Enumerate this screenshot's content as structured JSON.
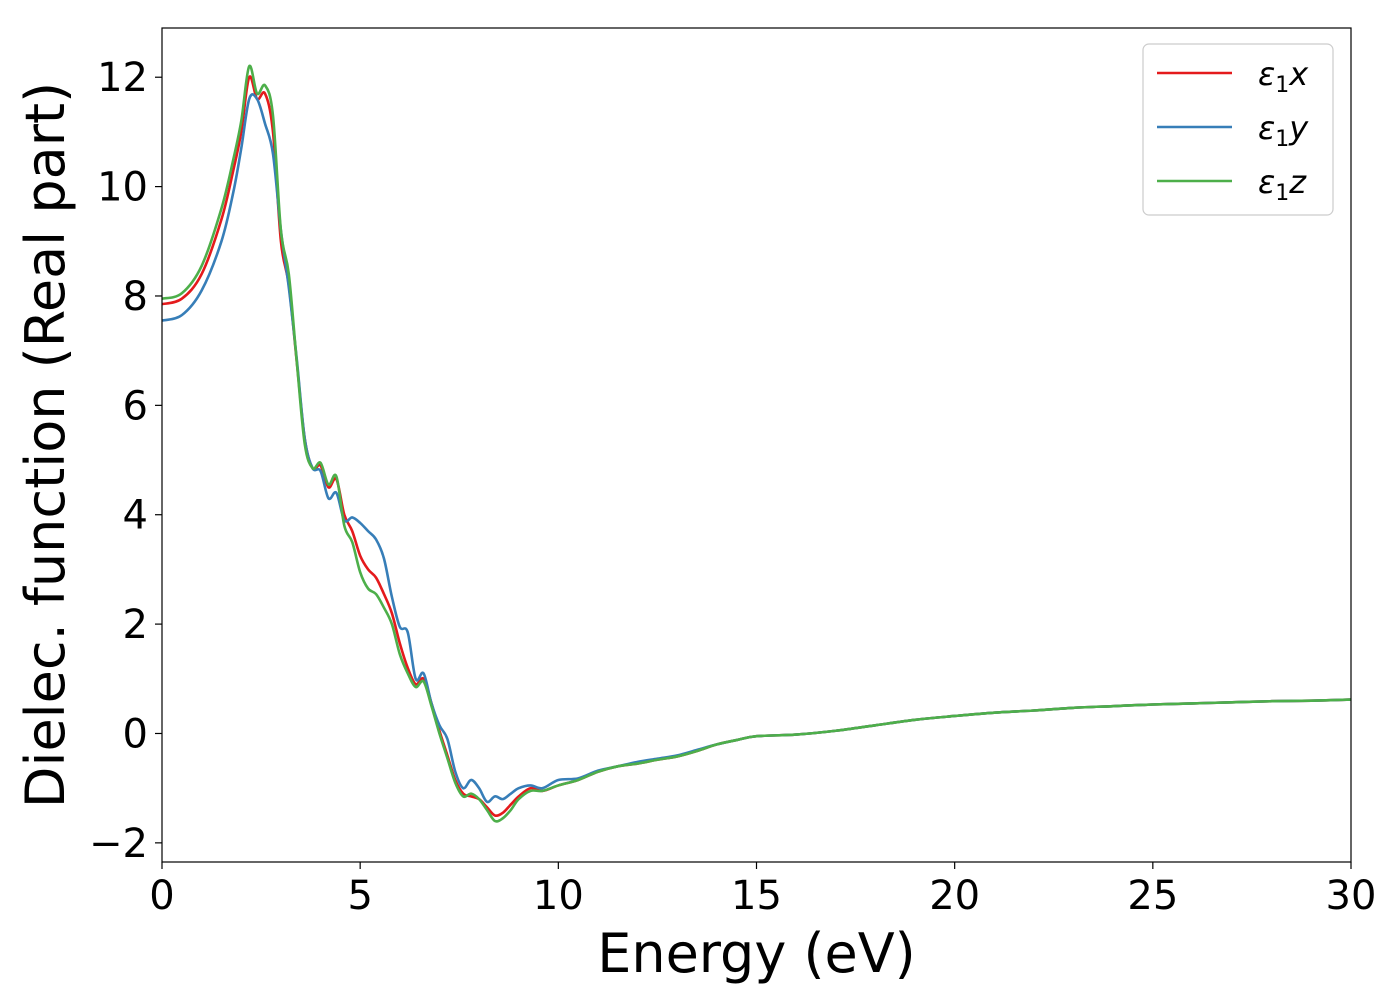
{
  "chart_data": {
    "type": "line",
    "title": "",
    "xlabel": "Energy (eV)",
    "ylabel": "Dielec. function (Real part)",
    "xlim": [
      0,
      30
    ],
    "ylim": [
      -2.35,
      12.9
    ],
    "xticks": [
      0,
      5,
      10,
      15,
      20,
      25,
      30
    ],
    "xtick_labels": [
      "0",
      "5",
      "10",
      "15",
      "20",
      "25",
      "30"
    ],
    "yticks": [
      -2,
      0,
      2,
      4,
      6,
      8,
      10,
      12
    ],
    "ytick_labels": [
      "−2",
      "0",
      "2",
      "4",
      "6",
      "8",
      "10",
      "12"
    ],
    "grid": false,
    "legend_position": "top-right",
    "series": [
      {
        "name": "ε1x",
        "legend": {
          "symbol": "ε",
          "sub": "1",
          "axis": "x"
        },
        "color": "#e41a1c",
        "x": [
          0,
          0.5,
          1.0,
          1.5,
          1.8,
          2.0,
          2.2,
          2.4,
          2.6,
          2.8,
          3.0,
          3.2,
          3.4,
          3.6,
          3.8,
          4.0,
          4.2,
          4.4,
          4.6,
          4.8,
          5.0,
          5.2,
          5.4,
          5.6,
          5.8,
          6.0,
          6.2,
          6.4,
          6.6,
          6.8,
          7.0,
          7.2,
          7.4,
          7.6,
          7.8,
          8.0,
          8.2,
          8.4,
          8.6,
          8.8,
          9.0,
          9.3,
          9.6,
          10.0,
          10.5,
          11.0,
          11.5,
          12.0,
          12.5,
          13.0,
          13.5,
          14.0,
          14.5,
          15.0,
          16.0,
          17.0,
          18.0,
          19.0,
          20.0,
          21.0,
          22.0,
          23.0,
          24.0,
          25.0,
          26.0,
          27.0,
          28.0,
          29.0,
          30.0
        ],
        "values": [
          7.85,
          7.95,
          8.4,
          9.4,
          10.3,
          11.0,
          12.0,
          11.6,
          11.7,
          11.0,
          9.0,
          8.2,
          6.8,
          5.4,
          4.85,
          4.9,
          4.5,
          4.65,
          4.0,
          3.7,
          3.25,
          3.0,
          2.85,
          2.55,
          2.2,
          1.65,
          1.2,
          0.9,
          1.0,
          0.55,
          0.05,
          -0.4,
          -0.85,
          -1.1,
          -1.15,
          -1.2,
          -1.35,
          -1.5,
          -1.45,
          -1.3,
          -1.15,
          -1.0,
          -1.05,
          -0.95,
          -0.85,
          -0.7,
          -0.6,
          -0.55,
          -0.48,
          -0.42,
          -0.32,
          -0.2,
          -0.12,
          -0.05,
          -0.02,
          0.05,
          0.15,
          0.25,
          0.32,
          0.38,
          0.42,
          0.47,
          0.5,
          0.53,
          0.55,
          0.57,
          0.59,
          0.6,
          0.62
        ]
      },
      {
        "name": "ε1y",
        "legend": {
          "symbol": "ε",
          "sub": "1",
          "axis": "y"
        },
        "color": "#377eb8",
        "x": [
          0,
          0.5,
          1.0,
          1.5,
          1.8,
          2.0,
          2.2,
          2.4,
          2.6,
          2.8,
          3.0,
          3.2,
          3.4,
          3.6,
          3.8,
          4.0,
          4.2,
          4.4,
          4.6,
          4.8,
          5.0,
          5.2,
          5.4,
          5.6,
          5.8,
          6.0,
          6.2,
          6.4,
          6.6,
          6.8,
          7.0,
          7.2,
          7.4,
          7.6,
          7.8,
          8.0,
          8.2,
          8.4,
          8.6,
          8.8,
          9.0,
          9.3,
          9.6,
          10.0,
          10.5,
          11.0,
          11.5,
          12.0,
          12.5,
          13.0,
          13.5,
          14.0,
          14.5,
          15.0,
          16.0,
          17.0,
          18.0,
          19.0,
          20.0,
          21.0,
          22.0,
          23.0,
          24.0,
          25.0,
          26.0,
          27.0,
          28.0,
          29.0,
          30.0
        ],
        "values": [
          7.55,
          7.65,
          8.1,
          9.0,
          9.9,
          10.7,
          11.6,
          11.6,
          11.15,
          10.6,
          9.2,
          8.15,
          6.85,
          5.4,
          4.85,
          4.8,
          4.3,
          4.4,
          3.9,
          3.95,
          3.85,
          3.7,
          3.55,
          3.2,
          2.5,
          1.95,
          1.85,
          1.0,
          1.1,
          0.55,
          0.15,
          -0.1,
          -0.7,
          -1.0,
          -0.85,
          -1.0,
          -1.25,
          -1.15,
          -1.2,
          -1.1,
          -1.0,
          -0.95,
          -1.0,
          -0.85,
          -0.82,
          -0.68,
          -0.6,
          -0.52,
          -0.46,
          -0.4,
          -0.3,
          -0.2,
          -0.12,
          -0.05,
          -0.02,
          0.05,
          0.15,
          0.25,
          0.32,
          0.38,
          0.42,
          0.47,
          0.5,
          0.53,
          0.55,
          0.57,
          0.59,
          0.6,
          0.62
        ]
      },
      {
        "name": "ε1z",
        "legend": {
          "symbol": "ε",
          "sub": "1",
          "axis": "z"
        },
        "color": "#4daf4a",
        "x": [
          0,
          0.5,
          1.0,
          1.5,
          1.8,
          2.0,
          2.2,
          2.4,
          2.6,
          2.8,
          3.0,
          3.2,
          3.4,
          3.6,
          3.8,
          4.0,
          4.2,
          4.4,
          4.6,
          4.8,
          5.0,
          5.2,
          5.4,
          5.6,
          5.8,
          6.0,
          6.2,
          6.4,
          6.6,
          6.8,
          7.0,
          7.2,
          7.4,
          7.6,
          7.8,
          8.0,
          8.2,
          8.4,
          8.6,
          8.8,
          9.0,
          9.3,
          9.6,
          10.0,
          10.5,
          11.0,
          11.5,
          12.0,
          12.5,
          13.0,
          13.5,
          14.0,
          14.5,
          15.0,
          16.0,
          17.0,
          18.0,
          19.0,
          20.0,
          21.0,
          22.0,
          23.0,
          24.0,
          25.0,
          26.0,
          27.0,
          28.0,
          29.0,
          30.0
        ],
        "values": [
          7.95,
          8.05,
          8.55,
          9.6,
          10.5,
          11.2,
          12.2,
          11.7,
          11.85,
          11.3,
          9.2,
          8.4,
          6.8,
          5.3,
          4.85,
          4.95,
          4.55,
          4.7,
          3.8,
          3.5,
          2.95,
          2.65,
          2.55,
          2.3,
          2.0,
          1.45,
          1.1,
          0.85,
          0.95,
          0.5,
          0.0,
          -0.45,
          -0.9,
          -1.15,
          -1.1,
          -1.2,
          -1.4,
          -1.6,
          -1.55,
          -1.4,
          -1.2,
          -1.05,
          -1.05,
          -0.95,
          -0.85,
          -0.7,
          -0.6,
          -0.55,
          -0.48,
          -0.42,
          -0.32,
          -0.2,
          -0.12,
          -0.05,
          -0.02,
          0.05,
          0.15,
          0.25,
          0.32,
          0.38,
          0.42,
          0.47,
          0.5,
          0.53,
          0.55,
          0.57,
          0.59,
          0.6,
          0.62
        ]
      }
    ]
  }
}
